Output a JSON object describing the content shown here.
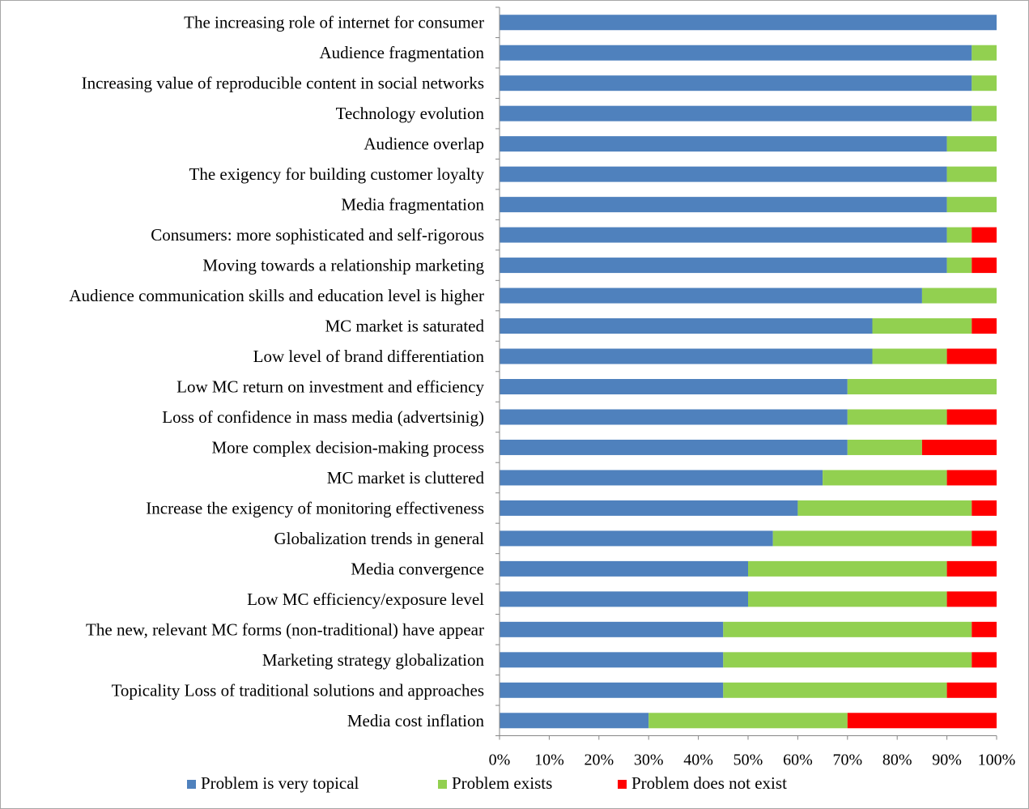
{
  "chart_data": {
    "type": "bar",
    "orientation": "horizontal",
    "stacked": "percent",
    "categories": [
      "The increasing role of internet for consumer",
      "Audience fragmentation",
      "Increasing value of reproducible content in social networks",
      "Technology evolution",
      "Audience overlap",
      "The exigency for building customer loyalty",
      "Media fragmentation",
      "Consumers: more sophisticated and self-rigorous",
      "Moving towards a relationship marketing",
      "Audience communication skills and education level is higher",
      "MC market is saturated",
      "Low level of brand differentiation",
      "Low MC return on investment and efficiency",
      "Loss of confidence in mass media (advertsinig)",
      "More complex decision-making process",
      "MC market is cluttered",
      "Increase the exigency of monitoring effectiveness",
      "Globalization trends in general",
      "Media convergence",
      "Low MC efficiency/exposure level",
      "The new, relevant MC forms (non-traditional) have appear",
      "Marketing strategy globalization",
      "Topicality Loss of traditional solutions and approaches",
      "Media cost inflation"
    ],
    "series": [
      {
        "name": "Problem is very topical",
        "color": "#4F81BD",
        "values": [
          100,
          95,
          95,
          95,
          90,
          90,
          90,
          90,
          90,
          85,
          75,
          75,
          70,
          70,
          70,
          65,
          60,
          55,
          50,
          50,
          45,
          45,
          45,
          30
        ]
      },
      {
        "name": "Problem exists",
        "color": "#92D050",
        "values": [
          0,
          5,
          5,
          5,
          10,
          10,
          10,
          5,
          5,
          15,
          20,
          15,
          30,
          20,
          15,
          25,
          35,
          40,
          40,
          40,
          50,
          50,
          45,
          40
        ]
      },
      {
        "name": "Problem does not exist",
        "color": "#FF0000",
        "values": [
          0,
          0,
          0,
          0,
          0,
          0,
          0,
          5,
          5,
          0,
          5,
          10,
          0,
          10,
          15,
          10,
          5,
          5,
          10,
          10,
          5,
          5,
          10,
          30
        ]
      }
    ],
    "x_ticks": [
      "0%",
      "10%",
      "20%",
      "30%",
      "40%",
      "50%",
      "60%",
      "70%",
      "80%",
      "90%",
      "100%"
    ],
    "xlim": [
      0,
      100
    ],
    "title": "",
    "xlabel": "",
    "ylabel": "",
    "grid": false,
    "legend_position": "bottom"
  }
}
